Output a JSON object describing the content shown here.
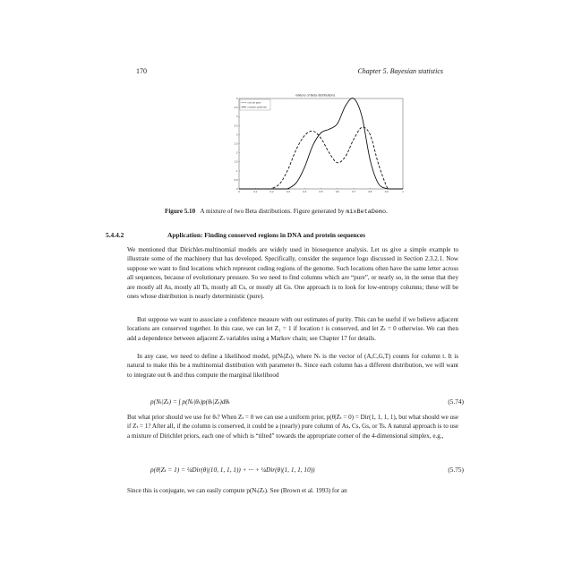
{
  "header": {
    "page_number": "170",
    "chapter": "Chapter 5.  Bayesian statistics"
  },
  "figure": {
    "caption_label": "Figure 5.10",
    "caption_text": "A mixture of two Beta distributions. Figure generated by ",
    "caption_code": "mixBetaDemo",
    "caption_end": "."
  },
  "chart_data": {
    "type": "line",
    "title": "mixture of Beta distributions",
    "xlabel": "",
    "ylabel": "",
    "xlim": [
      0,
      1
    ],
    "ylim": [
      0,
      5
    ],
    "xticks": [
      "0",
      "0.1",
      "0.2",
      "0.3",
      "0.4",
      "0.5",
      "0.6",
      "0.7",
      "0.8",
      "0.9",
      "1"
    ],
    "yticks": [
      "0",
      "0.5",
      "1",
      "1.5",
      "2",
      "2.5",
      "3",
      "3.5",
      "4",
      "4.5",
      "5"
    ],
    "legend_position": "top-left",
    "series": [
      {
        "name": "mix de prior",
        "style": "dashed",
        "x": [
          0.2,
          0.25,
          0.3,
          0.35,
          0.4,
          0.45,
          0.5,
          0.55,
          0.6,
          0.65,
          0.7,
          0.75,
          0.8,
          0.85,
          0.9
        ],
        "y": [
          0.02,
          0.3,
          1.1,
          2.2,
          2.95,
          3.2,
          2.8,
          2.0,
          1.45,
          1.8,
          2.75,
          3.4,
          3.0,
          1.4,
          0.15
        ]
      },
      {
        "name": "mixture posterior",
        "style": "solid",
        "x": [
          0.3,
          0.35,
          0.4,
          0.45,
          0.5,
          0.55,
          0.6,
          0.65,
          0.7,
          0.75,
          0.8,
          0.85,
          0.9
        ],
        "y": [
          0.02,
          0.35,
          1.2,
          2.4,
          3.1,
          3.3,
          3.6,
          4.6,
          5.0,
          4.0,
          1.6,
          0.3,
          0.02
        ]
      }
    ]
  },
  "section": {
    "number": "5.4.4.2",
    "title": "Application: Finding conserved regions in DNA and protein sequences"
  },
  "paragraphs": [
    "We mentioned that Dirichlet-multinomial models are widely used in biosequence analysis. Let us give a simple example to illustrate some of the machinery that has developed. Specifically, consider the sequence logo discussed in Section 2.3.2.1. Now suppose we want to find locations which represent coding regions of the genome. Such locations often have the same letter across all sequences, because of evolutionary pressure. So we need to find columns which are “pure”, or nearly so, in the sense that they are mostly all As, mostly all Ts, mostly all Cs, or mostly all Gs. One approach is to look for low-entropy columns; these will be ones whose distribution is nearly deterministic (pure).",
    "But suppose we want to associate a confidence measure with our estimates of purity. This can be useful if we believe adjacent locations are conserved together. In this case, we can let Z₁ = 1 if location t is conserved, and let Zₜ = 0 otherwise. We can then add a dependence between adjacent Zₜ variables using a Markov chain; see Chapter 17 for details.",
    "In any case, we need to define a likelihood model, p(Nₜ|Zₜ), where Nₜ is the vector of (A,C,G,T) counts for column t. It is natural to make this be a multinomial distribution with parameter θₜ. Since each column has a different distribution, we will want to integrate out θₜ and thus compute the marginal likelihood",
    "But what prior should we use for θₜ? When Zₜ = 0 we can use a uniform prior, p(θ|Zₜ = 0) = Dir(1, 1, 1, 1), but what should we use if Zₜ = 1? After all, if the column is conserved, it could be a (nearly) pure column of As, Cs, Gs, or Ts. A natural approach is to use a mixture of Dirichlet priors, each one of which is “tilted” towards the appropriate corner of the 4-dimensional simplex, e.g.,"
  ],
  "equations": [
    {
      "text": "p(Nₜ|Zₜ) = ∫ p(Nₜ|θₜ)p(θₜ|Zₜ)dθₜ",
      "number": "(5.74)"
    },
    {
      "text": "p(θ|Zₜ = 1) = ¼Dir(θ|(10, 1, 1, 1)) + ··· + ¼Dir(θ|(1, 1, 1, 10))",
      "number": "(5.75)"
    }
  ],
  "last_line": "Since this is conjugate, we can easily compute p(Nₜ|Zₜ).  See (Brown et al. 1993) for an"
}
